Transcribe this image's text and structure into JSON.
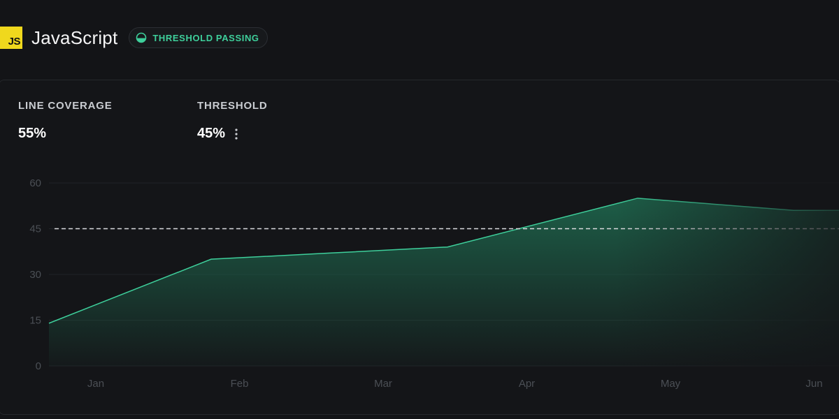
{
  "header": {
    "logo_text": "JS",
    "title": "JavaScript",
    "badge": {
      "label": "THRESHOLD PASSING",
      "icon": "half-circle-icon",
      "color": "#3ecf9b"
    }
  },
  "stats": {
    "line_coverage": {
      "label": "LINE COVERAGE",
      "value": "55%"
    },
    "threshold": {
      "label": "THRESHOLD",
      "value": "45%",
      "menu_icon": "kebab-menu-icon"
    }
  },
  "chart_data": {
    "type": "area",
    "x": [
      "Jan",
      "Feb",
      "Mar",
      "Apr",
      "May",
      "Jun"
    ],
    "points": [
      {
        "x": "Jan",
        "y": 14
      },
      {
        "x": "Feb",
        "y": 35
      },
      {
        "x": "Mar",
        "y": 37
      },
      {
        "x": "Apr",
        "y": 39
      },
      {
        "x": "May",
        "y": 55
      },
      {
        "x": "Jun",
        "y": 51
      }
    ],
    "threshold": 45,
    "ylim": [
      0,
      60
    ],
    "yticks": [
      0,
      15,
      30,
      45,
      60
    ],
    "grid": true,
    "colors": {
      "line": "#3ecf9b",
      "fill": "#1f6b50",
      "threshold": "#d9dadd"
    }
  }
}
